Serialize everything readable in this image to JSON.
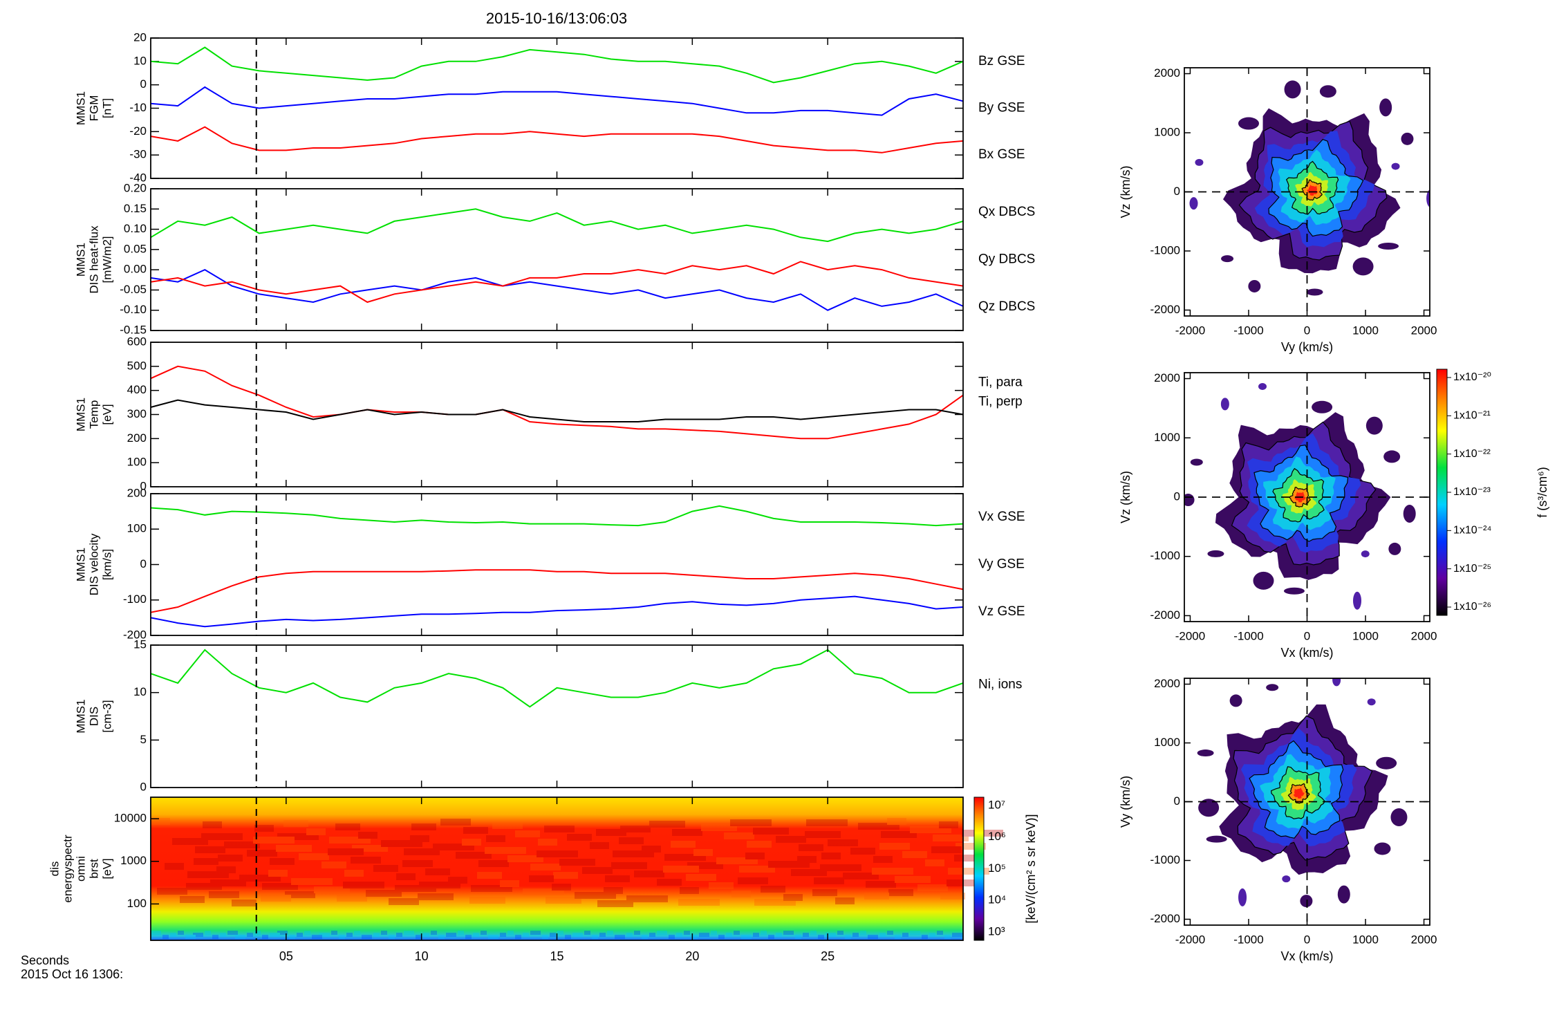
{
  "title": "2015-10-16/13:06:03",
  "x_label": [
    "Seconds",
    "2015 Oct 16 1306:"
  ],
  "cursor_x": 3.9,
  "time": [
    0,
    1,
    2,
    3,
    4,
    5,
    6,
    7,
    8,
    9,
    10,
    11,
    12,
    13,
    14,
    15,
    16,
    17,
    18,
    19,
    20,
    21,
    22,
    23,
    24,
    25,
    26,
    27,
    28,
    29,
    30
  ],
  "chart_data": [
    {
      "type": "line",
      "y_label": [
        "MMS1",
        "FGM",
        "[nT]"
      ],
      "xlim": [
        0,
        30
      ],
      "ylim": [
        -40,
        20
      ],
      "yticks": [
        -40,
        -30,
        -20,
        -10,
        0,
        10,
        20
      ],
      "series": [
        {
          "name": "Bz GSE",
          "color": "#ff0000",
          "values": [
            -22,
            -24,
            -18,
            -25,
            -28,
            -28,
            -27,
            -27,
            -26,
            -25,
            -23,
            -22,
            -21,
            -21,
            -20,
            -21,
            -22,
            -21,
            -21,
            -21,
            -21,
            -22,
            -24,
            -26,
            -27,
            -28,
            -28,
            -29,
            -27,
            -25,
            -24
          ]
        },
        {
          "name": "By GSE",
          "color": "#00e000",
          "values": [
            10,
            9,
            16,
            8,
            6,
            5,
            4,
            3,
            2,
            3,
            8,
            10,
            10,
            12,
            15,
            14,
            13,
            11,
            10,
            10,
            9,
            8,
            5,
            1,
            3,
            6,
            9,
            10,
            8,
            5,
            10
          ]
        },
        {
          "name": "Bx GSE",
          "color": "#0000ff",
          "values": [
            -8,
            -9,
            -1,
            -8,
            -10,
            -9,
            -8,
            -7,
            -6,
            -6,
            -5,
            -4,
            -4,
            -3,
            -3,
            -3,
            -4,
            -5,
            -6,
            -7,
            -8,
            -10,
            -12,
            -12,
            -11,
            -11,
            -12,
            -13,
            -6,
            -4,
            -7
          ]
        }
      ]
    },
    {
      "type": "line",
      "y_label": [
        "MMS1",
        "DIS heat-flux",
        "[mW/m2]"
      ],
      "xlim": [
        0,
        30
      ],
      "ylim": [
        -0.15,
        0.2
      ],
      "yticks": [
        {
          "value": 0.2,
          "label": "0.20"
        },
        0.15,
        {
          "value": 0.1,
          "label": "0.10"
        },
        0.05,
        {
          "value": 0,
          "label": "0.00"
        },
        -0.05,
        {
          "value": -0.1,
          "label": "-0.10"
        },
        -0.15
      ],
      "series": [
        {
          "name": "Qx DBCS",
          "color": "#0000ff",
          "values": [
            -0.02,
            -0.03,
            0.0,
            -0.04,
            -0.06,
            -0.07,
            -0.08,
            -0.06,
            -0.05,
            -0.04,
            -0.05,
            -0.03,
            -0.02,
            -0.04,
            -0.03,
            -0.04,
            -0.05,
            -0.06,
            -0.05,
            -0.07,
            -0.06,
            -0.05,
            -0.07,
            -0.08,
            -0.06,
            -0.1,
            -0.07,
            -0.09,
            -0.08,
            -0.06,
            -0.09
          ]
        },
        {
          "name": "Qy DBCS",
          "color": "#00e000",
          "values": [
            0.08,
            0.12,
            0.11,
            0.13,
            0.09,
            0.1,
            0.11,
            0.1,
            0.09,
            0.12,
            0.13,
            0.14,
            0.15,
            0.13,
            0.12,
            0.14,
            0.11,
            0.12,
            0.1,
            0.11,
            0.09,
            0.1,
            0.11,
            0.1,
            0.08,
            0.07,
            0.09,
            0.1,
            0.09,
            0.1,
            0.12
          ]
        },
        {
          "name": "Qz DBCS",
          "color": "#ff0000",
          "values": [
            -0.03,
            -0.02,
            -0.04,
            -0.03,
            -0.05,
            -0.06,
            -0.05,
            -0.04,
            -0.08,
            -0.06,
            -0.05,
            -0.04,
            -0.03,
            -0.04,
            -0.02,
            -0.02,
            -0.01,
            -0.01,
            0.0,
            -0.01,
            0.01,
            0.0,
            0.01,
            -0.01,
            0.02,
            0.0,
            0.01,
            0.0,
            -0.02,
            -0.03,
            -0.04
          ]
        }
      ]
    },
    {
      "type": "line",
      "y_label": [
        "MMS1",
        "Temp",
        "[eV]"
      ],
      "xlim": [
        0,
        30
      ],
      "ylim": [
        0,
        600
      ],
      "yticks": [
        0,
        100,
        200,
        300,
        400,
        500,
        600
      ],
      "series": [
        {
          "name": "Ti, para",
          "color": "#ff0000",
          "values": [
            450,
            500,
            480,
            420,
            380,
            330,
            290,
            300,
            320,
            310,
            310,
            300,
            300,
            320,
            270,
            260,
            255,
            250,
            240,
            240,
            235,
            230,
            220,
            210,
            200,
            200,
            220,
            240,
            260,
            300,
            380
          ]
        },
        {
          "name": "Ti, perp",
          "color": "#000000",
          "values": [
            330,
            360,
            340,
            330,
            320,
            310,
            280,
            300,
            320,
            300,
            310,
            300,
            300,
            320,
            290,
            280,
            270,
            270,
            270,
            280,
            280,
            280,
            290,
            290,
            280,
            290,
            300,
            310,
            320,
            320,
            300
          ]
        }
      ]
    },
    {
      "type": "line",
      "y_label": [
        "MMS1",
        "DIS velocity",
        "[km/s]"
      ],
      "xlim": [
        0,
        30
      ],
      "ylim": [
        -200,
        200
      ],
      "yticks": [
        -200,
        -100,
        0,
        100,
        200
      ],
      "series": [
        {
          "name": "Vx GSE",
          "color": "#0000ff",
          "values": [
            -150,
            -165,
            -175,
            -168,
            -160,
            -155,
            -158,
            -155,
            -150,
            -145,
            -140,
            -140,
            -138,
            -135,
            -135,
            -130,
            -128,
            -125,
            -120,
            -110,
            -105,
            -112,
            -115,
            -110,
            -100,
            -95,
            -90,
            -100,
            -110,
            -125,
            -120
          ]
        },
        {
          "name": "Vy GSE",
          "color": "#00e000",
          "values": [
            160,
            155,
            140,
            150,
            148,
            145,
            140,
            130,
            125,
            120,
            125,
            120,
            118,
            120,
            115,
            115,
            115,
            112,
            110,
            120,
            150,
            165,
            150,
            130,
            120,
            120,
            120,
            118,
            115,
            110,
            115
          ]
        },
        {
          "name": "Vz GSE",
          "color": "#ff0000",
          "values": [
            -135,
            -120,
            -90,
            -60,
            -35,
            -25,
            -20,
            -20,
            -20,
            -20,
            -20,
            -18,
            -15,
            -15,
            -15,
            -20,
            -20,
            -25,
            -25,
            -25,
            -30,
            -35,
            -40,
            -40,
            -35,
            -30,
            -25,
            -30,
            -40,
            -55,
            -70
          ]
        }
      ]
    },
    {
      "type": "line",
      "y_label": [
        "MMS1",
        "DIS",
        "[cm-3]"
      ],
      "xlim": [
        0,
        30
      ],
      "ylim": [
        0,
        15
      ],
      "yticks": [
        0,
        5,
        10,
        15
      ],
      "series": [
        {
          "name": "Ni, ions",
          "color": "#00e000",
          "values": [
            12,
            11,
            14.5,
            12,
            10.5,
            10,
            11,
            9.5,
            9,
            10.5,
            11,
            12,
            11.5,
            10.5,
            8.5,
            10.5,
            10,
            9.5,
            9.5,
            10,
            11,
            10.5,
            11,
            12.5,
            13,
            14.5,
            12,
            11.5,
            10,
            10,
            11
          ]
        }
      ]
    },
    {
      "type": "spectrogram",
      "y_label": [
        "dis",
        "energyspectr",
        "omni",
        "brst",
        "[eV]"
      ],
      "xlim": [
        0,
        30
      ],
      "ylim": [
        14,
        32000
      ],
      "log_y": true,
      "yticks": [
        100,
        1000,
        10000
      ],
      "xticks": [
        {
          "value": 5,
          "label": "05"
        },
        10,
        15,
        20,
        25
      ],
      "colorbar": {
        "label": "[keV/(cm² s sr keV)]",
        "ticks": [
          "10³",
          "10⁴",
          "10⁵",
          "10⁶",
          "10⁷"
        ]
      }
    },
    {
      "type": "distribution",
      "x_label": "Vy (km/s)",
      "y_label": "Vz (km/s)",
      "xlim": [
        -2100,
        2100
      ],
      "ylim": [
        -2100,
        2100
      ],
      "xticks": [
        -2000,
        -1000,
        0,
        1000,
        2000
      ],
      "yticks": [
        -2000,
        -1000,
        0,
        1000,
        2000
      ]
    },
    {
      "type": "distribution",
      "x_label": "Vx (km/s)",
      "y_label": "Vz (km/s)",
      "xlim": [
        -2100,
        2100
      ],
      "ylim": [
        -2100,
        2100
      ],
      "xticks": [
        -2000,
        -1000,
        0,
        1000,
        2000
      ],
      "yticks": [
        -2000,
        -1000,
        0,
        1000,
        2000
      ]
    },
    {
      "type": "distribution",
      "x_label": "Vx (km/s)",
      "y_label": "Vy (km/s)",
      "xlim": [
        -2100,
        2100
      ],
      "ylim": [
        -2100,
        2100
      ],
      "xticks": [
        -2000,
        -1000,
        0,
        1000,
        2000
      ],
      "yticks": [
        -2000,
        -1000,
        0,
        1000,
        2000
      ]
    }
  ],
  "distribution_colorbar": {
    "label": "f (s³/cm⁶)",
    "ticks": [
      "1x10⁻²⁰",
      "1x10⁻²¹",
      "1x10⁻²²",
      "1x10⁻²³",
      "1x10⁻²⁴",
      "1x10⁻²⁵",
      "1x10⁻²⁶"
    ]
  }
}
